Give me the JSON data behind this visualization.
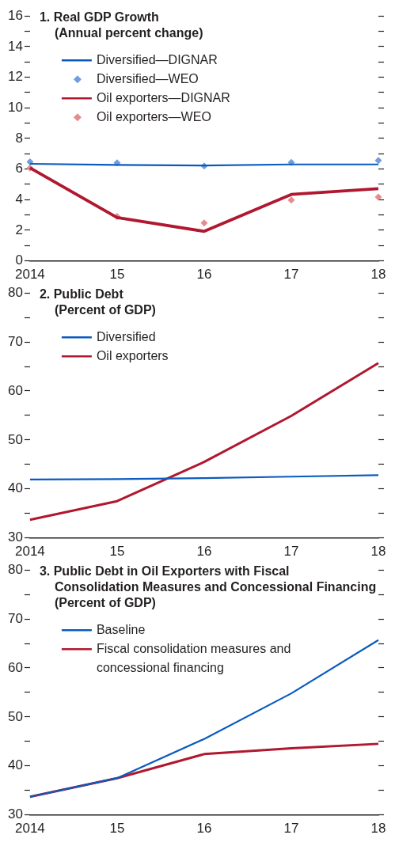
{
  "chart_data": [
    {
      "type": "line",
      "title": "1. Real GDP Growth",
      "subtitle": "(Annual percent change)",
      "categories": [
        "2014",
        "15",
        "16",
        "17",
        "18"
      ],
      "ylim": [
        0,
        16
      ],
      "yticks": [
        0,
        {
          "value": 1,
          "label": null
        },
        2,
        {
          "value": 3,
          "label": null
        },
        4,
        {
          "value": 5,
          "label": null
        },
        6,
        {
          "value": 7,
          "label": null
        },
        8,
        {
          "value": 9,
          "label": null
        },
        10,
        {
          "value": 11,
          "label": null
        },
        12,
        {
          "value": 13,
          "label": null
        },
        14,
        {
          "value": 15,
          "label": null
        },
        16
      ],
      "grid": false,
      "legend": "top left",
      "marker": "none",
      "line_style": "solid",
      "series": [
        {
          "name": "Diversified—DIGNAR",
          "color": "#0a5bbf",
          "values": [
            6.34,
            6.27,
            6.23,
            6.3,
            6.3
          ]
        },
        {
          "name": "Diversified—WEO",
          "type": "scatter",
          "marker": "diamond",
          "color": "#6f9ee0",
          "values": [
            6.47,
            6.4,
            6.2,
            6.43,
            6.56
          ]
        },
        {
          "name": "Oil exporters—DIGNAR",
          "color": "#b0182f",
          "values": [
            6.07,
            2.83,
            1.93,
            4.34,
            4.72
          ]
        },
        {
          "name": "Oil exporters—WEO",
          "type": "scatter",
          "marker": "diamond",
          "color": "#e58c8c",
          "values": [
            6.07,
            2.9,
            2.48,
            3.97,
            4.17
          ]
        }
      ]
    },
    {
      "type": "line",
      "title": "2. Public Debt",
      "subtitle": "(Percent of GDP)",
      "categories": [
        "2014",
        "15",
        "16",
        "17",
        "18"
      ],
      "ylim": [
        30,
        80
      ],
      "yticks": [
        30,
        {
          "value": 35,
          "label": null
        },
        40,
        {
          "value": 45,
          "label": null
        },
        50,
        {
          "value": 55,
          "label": null
        },
        60,
        {
          "value": 65,
          "label": null
        },
        70,
        {
          "value": 75,
          "label": null
        },
        80
      ],
      "grid": false,
      "legend": "top left",
      "marker": "none",
      "line_style": "solid",
      "series": [
        {
          "name": "Diversified",
          "color": "#0a5bbf",
          "values": [
            41.9,
            42.0,
            42.2,
            42.5,
            42.8
          ]
        },
        {
          "name": "Oil exporters",
          "color": "#b0182f",
          "values": [
            33.7,
            37.5,
            45.5,
            54.9,
            65.7
          ]
        }
      ]
    },
    {
      "type": "line",
      "title": "3. Public Debt in Oil Exporters with Fiscal Consolidation Measures and Concessional Financing",
      "subtitle": "(Percent of GDP)",
      "categories": [
        "2014",
        "15",
        "16",
        "17",
        "18"
      ],
      "ylim": [
        30,
        80
      ],
      "yticks": [
        30,
        {
          "value": 35,
          "label": null
        },
        40,
        {
          "value": 45,
          "label": null
        },
        50,
        {
          "value": 55,
          "label": null
        },
        60,
        {
          "value": 65,
          "label": null
        },
        70,
        {
          "value": 75,
          "label": null
        },
        80
      ],
      "grid": false,
      "legend": "top left",
      "marker": "none",
      "line_style": "solid",
      "series": [
        {
          "name": "Baseline",
          "color": "#0a5bbf",
          "values": [
            33.7,
            37.5,
            45.5,
            54.8,
            65.7
          ]
        },
        {
          "name": "Fiscal consolidation measures and concessional financing",
          "color": "#b0182f",
          "values": [
            33.7,
            37.5,
            42.4,
            43.6,
            44.5
          ]
        }
      ]
    }
  ]
}
